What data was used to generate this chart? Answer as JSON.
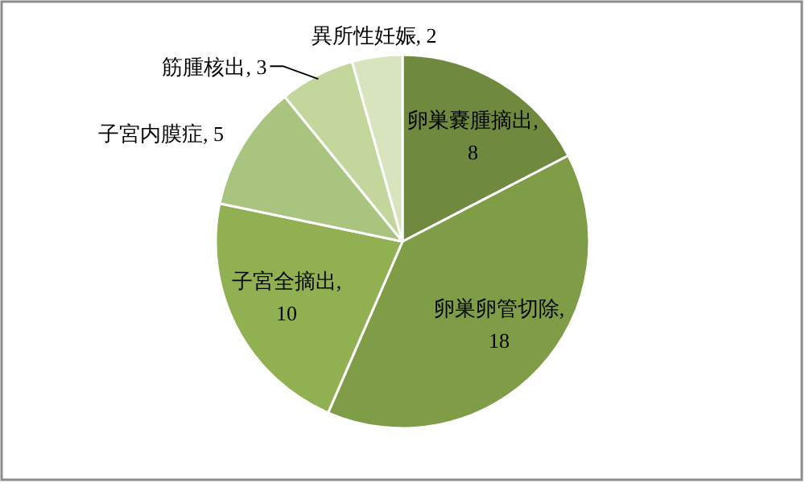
{
  "chart_data": {
    "type": "pie",
    "categories": [
      "卵巣嚢腫摘出",
      "卵巣卵管切除",
      "子宮全摘出",
      "子宮内膜症",
      "筋腫核出",
      "異所性妊娠"
    ],
    "values": [
      8,
      18,
      10,
      5,
      3,
      2
    ],
    "value_labels": [
      ", 8",
      ", 18",
      ", 10",
      ", 5",
      ", 3",
      ", 2"
    ],
    "colors": [
      "#6f8a3e",
      "#7f9c47",
      "#91b052",
      "#a9c47f",
      "#c3d69b",
      "#d7e4bd"
    ]
  }
}
